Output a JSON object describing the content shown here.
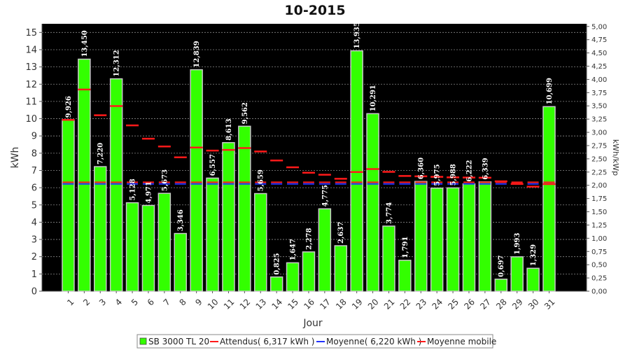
{
  "chart_data": {
    "type": "bar",
    "title": "10-2015",
    "xlabel": "Jour",
    "ylabel": "kWh",
    "y2label": "kWh/kWp",
    "ylim": [
      0,
      15.5
    ],
    "y2lim": [
      0,
      5.05
    ],
    "yticks": [
      "0",
      "1",
      "2",
      "3",
      "4",
      "5",
      "6",
      "7",
      "8",
      "9",
      "10",
      "11",
      "12",
      "13",
      "14",
      "15"
    ],
    "y2ticks": [
      "0,00",
      "0,25",
      "0,50",
      "0,75",
      "1,00",
      "1,25",
      "1,50",
      "1,75",
      "2,00",
      "2,25",
      "2,50",
      "2,75",
      "3,00",
      "3,25",
      "3,50",
      "3,75",
      "4,00",
      "4,25",
      "4,50",
      "4,75",
      "5,00"
    ],
    "categories": [
      "1",
      "2",
      "3",
      "4",
      "5",
      "6",
      "7",
      "8",
      "9",
      "10",
      "11",
      "12",
      "13",
      "14",
      "15",
      "16",
      "17",
      "18",
      "19",
      "20",
      "21",
      "22",
      "23",
      "24",
      "25",
      "26",
      "27",
      "28",
      "29",
      "30",
      "31"
    ],
    "series": [
      {
        "name": "SB 3000 TL 20",
        "kind": "bar",
        "color": "#33ff00",
        "values": [
          9.926,
          13.45,
          7.22,
          12.312,
          5.128,
          4.971,
          5.673,
          3.346,
          12.839,
          6.557,
          8.613,
          9.562,
          5.659,
          0.825,
          1.647,
          2.278,
          4.775,
          2.637,
          13.935,
          10.291,
          3.774,
          1.791,
          6.36,
          5.975,
          5.988,
          6.222,
          6.339,
          0.697,
          1.993,
          1.329,
          10.699
        ],
        "labels": [
          "9,926",
          "13,450",
          "7,220",
          "12,312",
          "5,128",
          "4,971",
          "5,673",
          "3,346",
          "12,839",
          "6,557",
          "8,613",
          "9,562",
          "5,659",
          "0,825",
          "1,647",
          "2,278",
          "4,775",
          "2,637",
          "13,935",
          "10,291",
          "3,774",
          "1,791",
          "6,360",
          "5,975",
          "5,988",
          "6,222",
          "6,339",
          "0,697",
          "1,993",
          "1,329",
          "10,699"
        ]
      },
      {
        "name": "Attendus( 6,317 kWh )",
        "kind": "reference",
        "color": "#ff1a1a",
        "value": 6.317
      },
      {
        "name": "Moyenne( 6,220 kWh )",
        "kind": "reference",
        "color": "#2233ff",
        "value": 6.22
      },
      {
        "name": "Moyenne mobile",
        "kind": "marker",
        "color": "#ff1a1a",
        "values": [
          9.93,
          11.69,
          10.2,
          10.73,
          9.61,
          8.84,
          8.39,
          7.76,
          8.33,
          8.15,
          8.19,
          8.3,
          8.1,
          7.58,
          7.18,
          6.87,
          6.75,
          6.52,
          6.91,
          7.08,
          6.92,
          6.68,
          6.66,
          6.63,
          6.6,
          6.59,
          6.58,
          6.37,
          6.22,
          6.06,
          6.21
        ]
      }
    ],
    "grid": true,
    "legend_position": "bottom"
  },
  "colors": {
    "plot_background": "#000000",
    "bar_fill": "#33ff00",
    "bar_edge": "#c8c8c8",
    "grid": "#888888"
  }
}
